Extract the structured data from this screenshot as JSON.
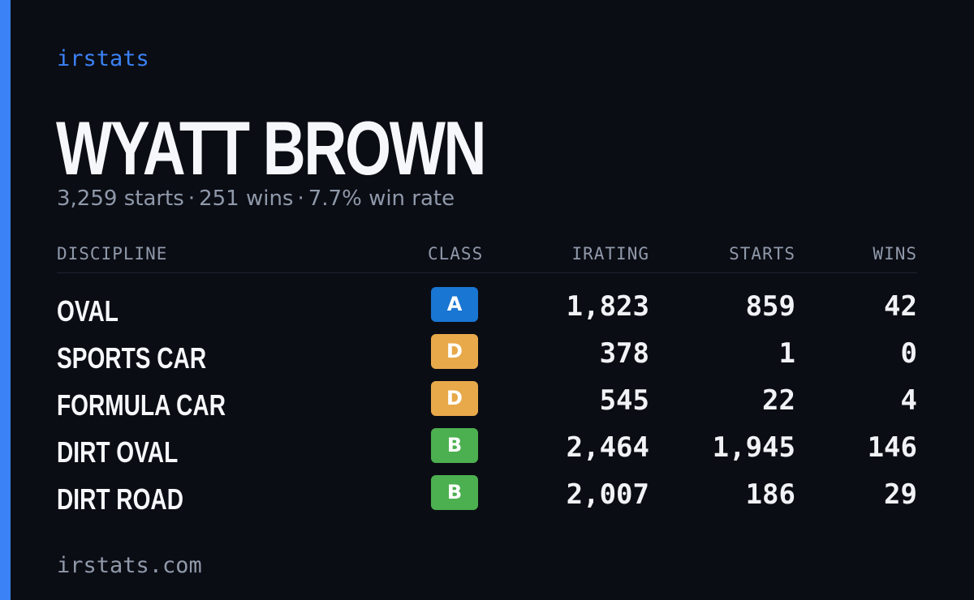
{
  "brand": "irstats",
  "driver": {
    "name": "WYATT BROWN",
    "starts_text": "3,259 starts",
    "wins_text": "251 wins",
    "win_rate_text": "7.7% win rate",
    "separator": "·"
  },
  "table": {
    "headers": {
      "discipline": "DISCIPLINE",
      "class": "CLASS",
      "irating": "IRATING",
      "starts": "STARTS",
      "wins": "WINS"
    },
    "rows": [
      {
        "discipline": "OVAL",
        "class": "A",
        "irating": "1,823",
        "starts": "859",
        "wins": "42"
      },
      {
        "discipline": "SPORTS CAR",
        "class": "D",
        "irating": "378",
        "starts": "1",
        "wins": "0"
      },
      {
        "discipline": "FORMULA CAR",
        "class": "D",
        "irating": "545",
        "starts": "22",
        "wins": "4"
      },
      {
        "discipline": "DIRT OVAL",
        "class": "B",
        "irating": "2,464",
        "starts": "1,945",
        "wins": "146"
      },
      {
        "discipline": "DIRT ROAD",
        "class": "B",
        "irating": "2,007",
        "starts": "186",
        "wins": "29"
      }
    ]
  },
  "footer": "irstats.com",
  "colors": {
    "background": "#0b0d14",
    "accent": "#3b82f6",
    "class_A": "#1976d2",
    "class_B": "#4caf50",
    "class_D": "#e8a94a"
  }
}
